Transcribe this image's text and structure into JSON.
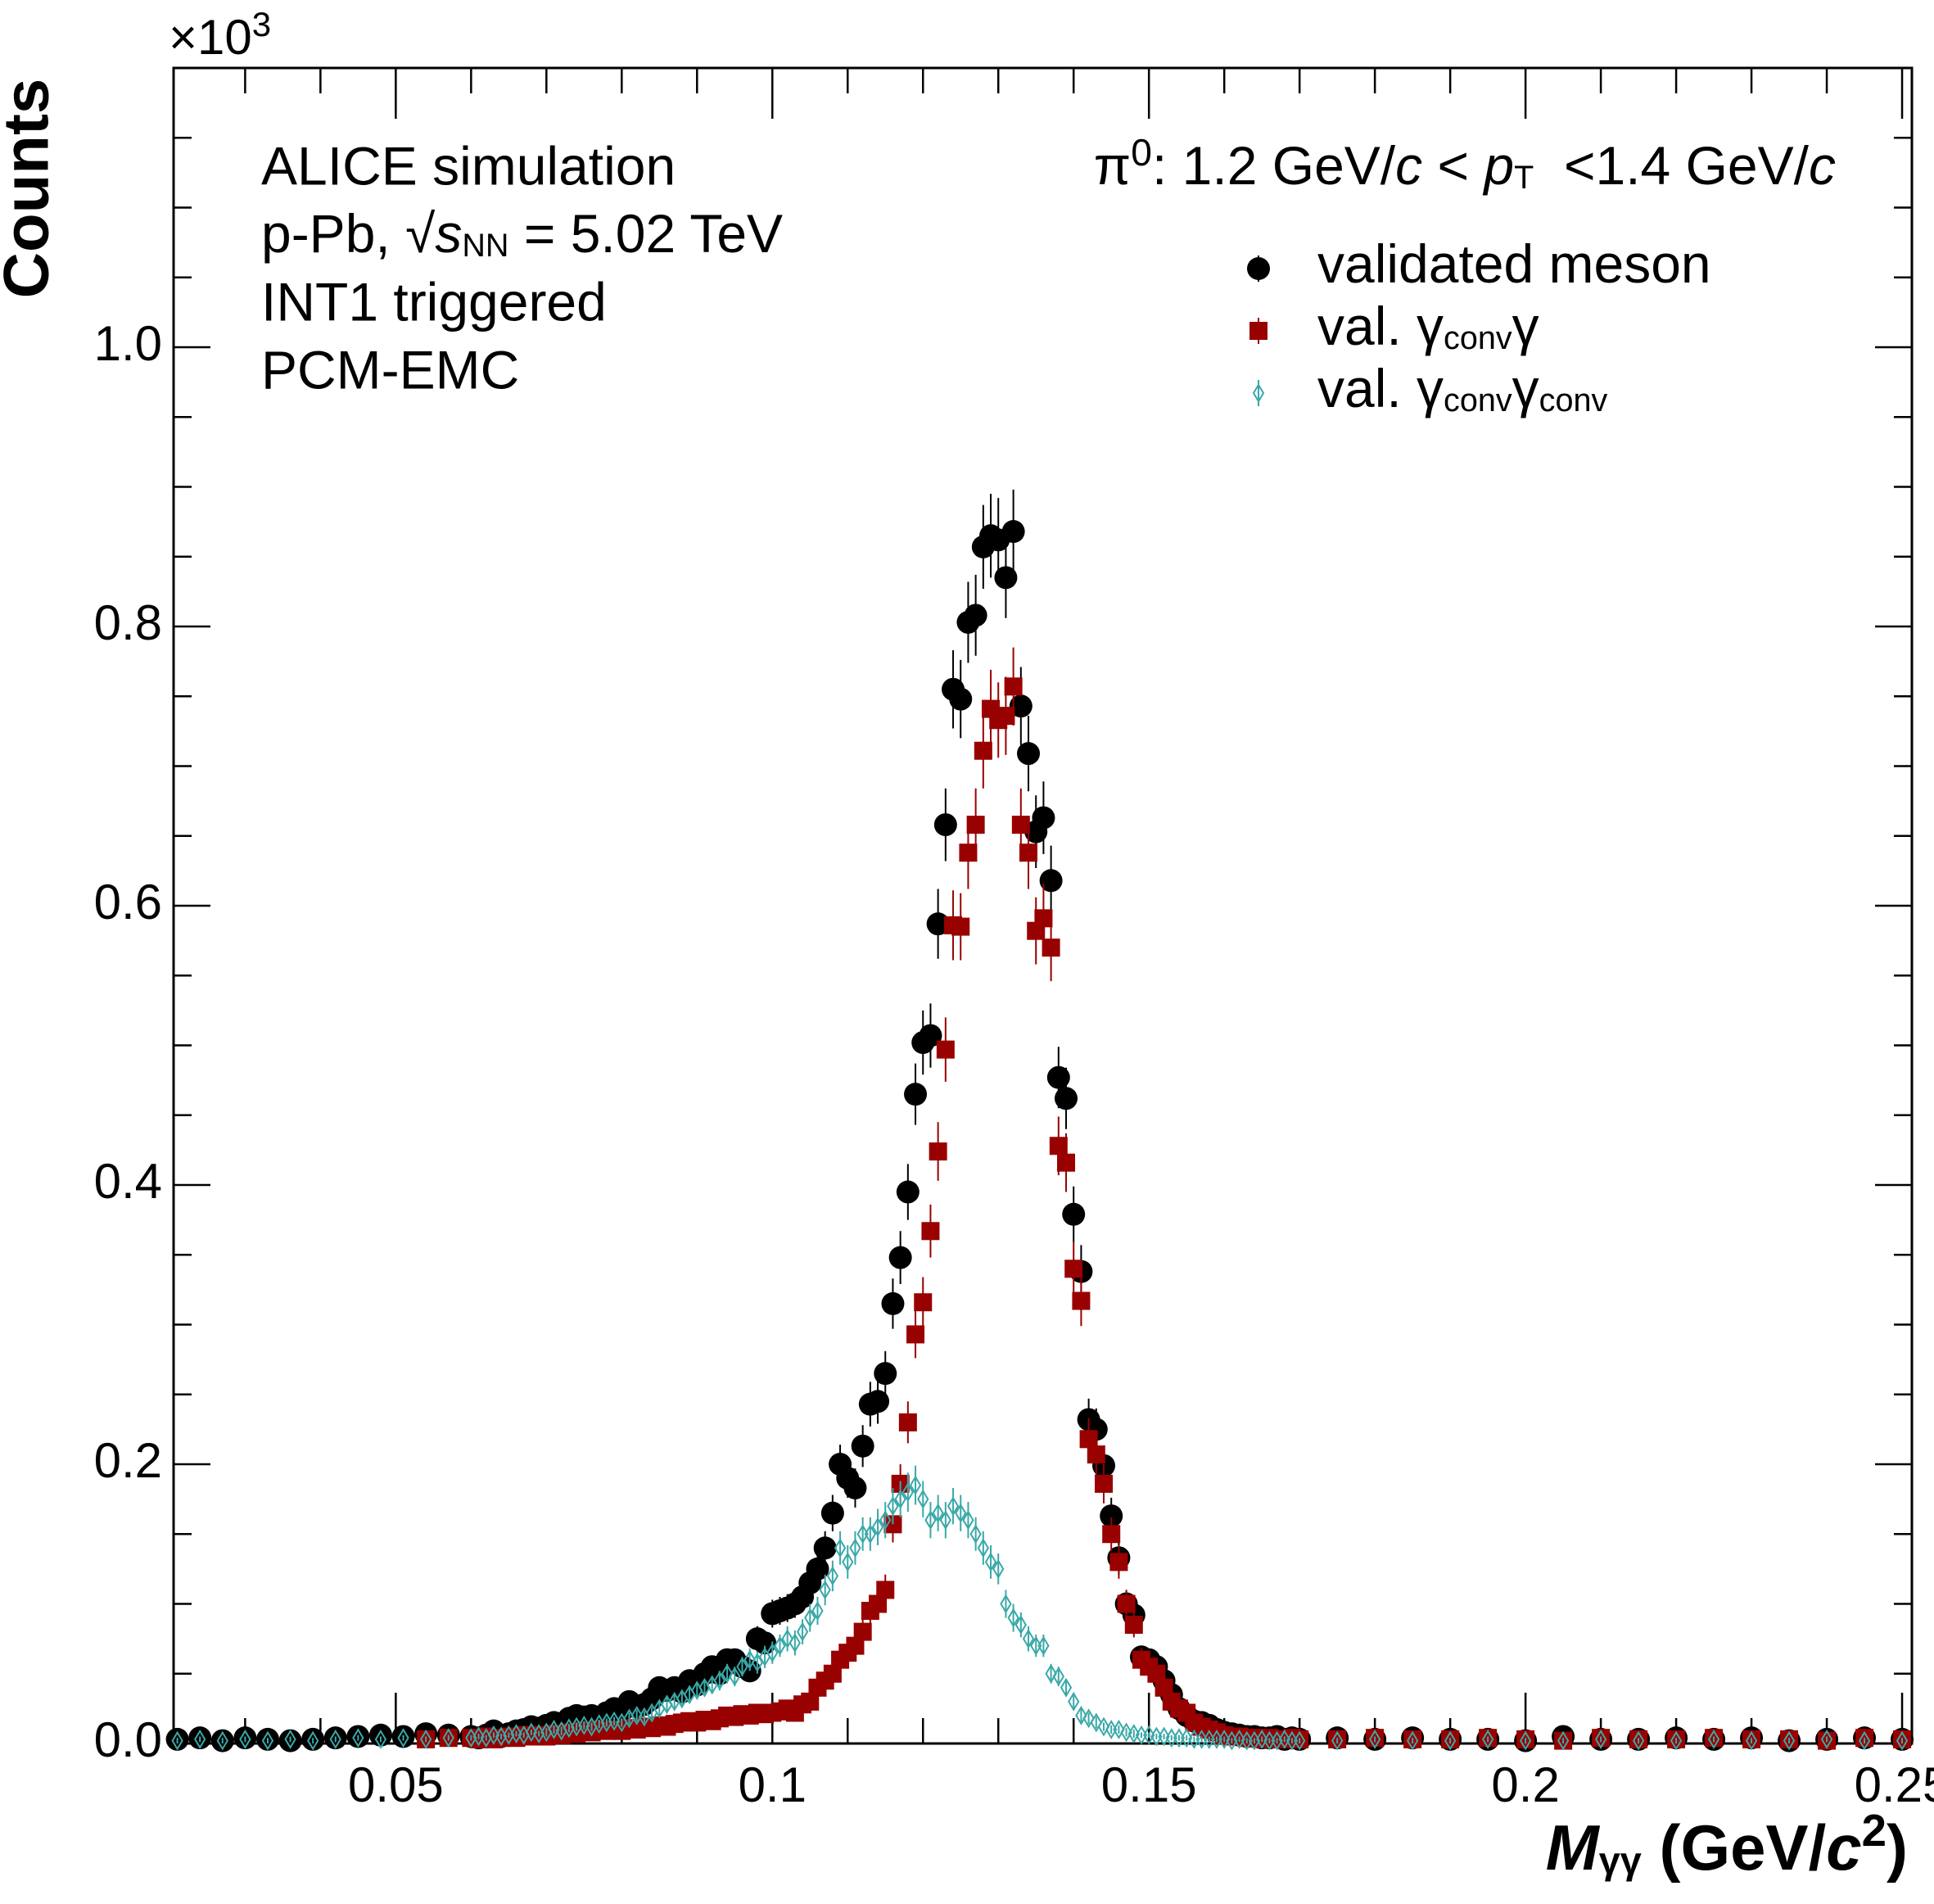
{
  "chart_data": {
    "type": "scatter",
    "multiplier": [
      {
        "text": "×10"
      },
      {
        "text": "3",
        "style": "sup"
      }
    ],
    "ylabel": "Counts",
    "xlabel": [
      {
        "text": "M",
        "style": "bold-italic"
      },
      {
        "text": "γγ",
        "style": "sub"
      },
      {
        "text": " (GeV/"
      },
      {
        "text": "c",
        "style": "bold-italic"
      },
      {
        "text": "2",
        "style": "sup"
      },
      {
        "text": ")"
      }
    ],
    "annotations": [
      "ALICE simulation",
      [
        {
          "text": "p-Pb, "
        },
        {
          "text": "√"
        },
        {
          "text": "s",
          "style": "italic"
        },
        {
          "text": "NN",
          "style": "sub"
        },
        {
          "text": " = 5.02 TeV"
        }
      ],
      "INT1 triggered",
      "PCM-EMC"
    ],
    "subtitle": [
      {
        "text": "π"
      },
      {
        "text": "0",
        "style": "sup"
      },
      {
        "text": ": 1.2 GeV/"
      },
      {
        "text": "c",
        "style": "italic"
      },
      {
        "text": " < "
      },
      {
        "text": "p",
        "style": "italic"
      },
      {
        "text": "T",
        "style": "sub"
      },
      {
        "text": "  <1.4 GeV/"
      },
      {
        "text": "c",
        "style": "italic"
      }
    ],
    "xlim": [
      0.0205,
      0.2513
    ],
    "ylim": [
      0,
      1.2
    ],
    "xticks": [
      0.05,
      0.1,
      0.15,
      0.2,
      0.25
    ],
    "xticks_minor": [
      0.03,
      0.04,
      0.06,
      0.07,
      0.08,
      0.09,
      0.11,
      0.12,
      0.13,
      0.14,
      0.16,
      0.17,
      0.18,
      0.19,
      0.21,
      0.22,
      0.23,
      0.24
    ],
    "yticks": [
      {
        "value": 0,
        "label": "0.0"
      },
      0.2,
      0.4,
      0.6,
      0.8,
      {
        "value": 1,
        "label": "1.0"
      }
    ],
    "yticks_minor": [
      0.05,
      0.1,
      0.15,
      0.25,
      0.3,
      0.35,
      0.45,
      0.5,
      0.55,
      0.65,
      0.7,
      0.75,
      0.85,
      0.9,
      0.95,
      1.05,
      1.1,
      1.15
    ],
    "legend": "upper right",
    "x": [
      0.021,
      0.024,
      0.027,
      0.03,
      0.033,
      0.036,
      0.039,
      0.042,
      0.045,
      0.048,
      0.051,
      0.054,
      0.057,
      0.06,
      0.061,
      0.062,
      0.063,
      0.064,
      0.065,
      0.066,
      0.067,
      0.068,
      0.069,
      0.07,
      0.071,
      0.072,
      0.073,
      0.074,
      0.075,
      0.076,
      0.077,
      0.078,
      0.079,
      0.08,
      0.081,
      0.082,
      0.083,
      0.084,
      0.085,
      0.086,
      0.087,
      0.088,
      0.089,
      0.09,
      0.091,
      0.092,
      0.093,
      0.094,
      0.095,
      0.096,
      0.097,
      0.098,
      0.099,
      0.1,
      0.101,
      0.102,
      0.103,
      0.104,
      0.105,
      0.106,
      0.107,
      0.108,
      0.109,
      0.11,
      0.111,
      0.112,
      0.113,
      0.114,
      0.115,
      0.116,
      0.117,
      0.118,
      0.119,
      0.12,
      0.121,
      0.122,
      0.123,
      0.124,
      0.125,
      0.126,
      0.127,
      0.128,
      0.129,
      0.13,
      0.131,
      0.132,
      0.133,
      0.134,
      0.135,
      0.136,
      0.137,
      0.138,
      0.139,
      0.14,
      0.141,
      0.142,
      0.143,
      0.144,
      0.145,
      0.146,
      0.147,
      0.148,
      0.149,
      0.15,
      0.151,
      0.152,
      0.153,
      0.154,
      0.155,
      0.156,
      0.157,
      0.158,
      0.159,
      0.16,
      0.161,
      0.162,
      0.163,
      0.164,
      0.165,
      0.166,
      0.167,
      0.168,
      0.169,
      0.17,
      0.175,
      0.18,
      0.185,
      0.19,
      0.195,
      0.2,
      0.205,
      0.21,
      0.215,
      0.22,
      0.225,
      0.23,
      0.235,
      0.24,
      0.245,
      0.25
    ],
    "series": [
      {
        "name": [
          {
            "text": "validated meson"
          }
        ],
        "color": "#000000",
        "marker": "circle",
        "values": [
          0.003,
          0.004,
          0.002,
          0.004,
          0.003,
          0.002,
          0.003,
          0.004,
          0.005,
          0.006,
          0.005,
          0.007,
          0.006,
          0.005,
          0.004,
          0.006,
          0.009,
          0.005,
          0.007,
          0.009,
          0.01,
          0.012,
          0.011,
          0.013,
          0.015,
          0.012,
          0.018,
          0.02,
          0.019,
          0.02,
          0.018,
          0.022,
          0.025,
          0.023,
          0.03,
          0.026,
          0.028,
          0.032,
          0.04,
          0.038,
          0.04,
          0.037,
          0.045,
          0.042,
          0.05,
          0.055,
          0.05,
          0.06,
          0.06,
          0.055,
          0.052,
          0.075,
          0.072,
          0.093,
          0.095,
          0.097,
          0.1,
          0.105,
          0.115,
          0.125,
          0.14,
          0.165,
          0.2,
          0.19,
          0.183,
          0.213,
          0.243,
          0.245,
          0.265,
          0.315,
          0.348,
          0.395,
          0.465,
          0.502,
          0.507,
          0.587,
          0.658,
          0.755,
          0.748,
          0.803,
          0.808,
          0.857,
          0.865,
          0.862,
          0.835,
          0.868,
          0.743,
          0.709,
          0.653,
          0.663,
          0.618,
          0.477,
          0.462,
          0.379,
          0.338,
          0.232,
          0.225,
          0.199,
          0.163,
          0.133,
          0.1,
          0.092,
          0.062,
          0.06,
          0.055,
          0.045,
          0.035,
          0.025,
          0.02,
          0.016,
          0.015,
          0.013,
          0.01,
          0.008,
          0.007,
          0.006,
          0.005,
          0.005,
          0.004,
          0.004,
          0.005,
          0.003,
          0.004,
          0.003,
          0.004,
          0.003,
          0.004,
          0.003,
          0.003,
          0.002,
          0.005,
          0.003,
          0.003,
          0.004,
          0.003,
          0.004,
          0.002,
          0.003,
          0.004,
          0.003
        ],
        "errors": [
          0.002,
          0.002,
          0.002,
          0.002,
          0.002,
          0.002,
          0.002,
          0.002,
          0.002,
          0.002,
          0.002,
          0.002,
          0.002,
          0.002,
          0.002,
          0.002,
          0.003,
          0.002,
          0.003,
          0.003,
          0.003,
          0.004,
          0.003,
          0.004,
          0.004,
          0.004,
          0.004,
          0.005,
          0.004,
          0.005,
          0.004,
          0.005,
          0.005,
          0.005,
          0.006,
          0.005,
          0.005,
          0.006,
          0.006,
          0.006,
          0.006,
          0.006,
          0.007,
          0.007,
          0.007,
          0.008,
          0.007,
          0.008,
          0.008,
          0.008,
          0.007,
          0.009,
          0.009,
          0.01,
          0.01,
          0.01,
          0.01,
          0.01,
          0.011,
          0.011,
          0.012,
          0.013,
          0.014,
          0.014,
          0.014,
          0.015,
          0.016,
          0.016,
          0.016,
          0.018,
          0.019,
          0.02,
          0.022,
          0.023,
          0.023,
          0.025,
          0.026,
          0.028,
          0.028,
          0.029,
          0.029,
          0.03,
          0.03,
          0.03,
          0.029,
          0.03,
          0.028,
          0.027,
          0.026,
          0.026,
          0.025,
          0.022,
          0.022,
          0.02,
          0.019,
          0.015,
          0.015,
          0.014,
          0.013,
          0.012,
          0.01,
          0.01,
          0.008,
          0.008,
          0.008,
          0.007,
          0.006,
          0.005,
          0.005,
          0.004,
          0.004,
          0.004,
          0.003,
          0.003,
          0.003,
          0.002,
          0.002,
          0.002,
          0.002,
          0.002,
          0.002,
          0.002,
          0.002,
          0.002,
          0.002,
          0.002,
          0.002,
          0.002,
          0.002,
          0.002,
          0.002,
          0.002,
          0.002,
          0.002,
          0.002,
          0.002,
          0.002,
          0.002,
          0.002,
          0.002
        ]
      },
      {
        "name": [
          {
            "text": "val. γ"
          },
          {
            "text": "conv",
            "style": "sub"
          },
          {
            "text": "γ"
          }
        ],
        "color": "#990000",
        "marker": "square",
        "values": [
          null,
          null,
          null,
          null,
          null,
          null,
          null,
          null,
          null,
          null,
          null,
          0.003,
          0.004,
          0.004,
          0.003,
          0.005,
          0.003,
          0.004,
          0.005,
          0.004,
          0.006,
          0.005,
          0.006,
          0.005,
          0.007,
          0.006,
          0.008,
          0.007,
          0.009,
          0.008,
          0.01,
          0.009,
          0.01,
          0.009,
          0.011,
          0.01,
          0.012,
          0.011,
          0.013,
          0.012,
          0.014,
          0.015,
          0.016,
          0.015,
          0.017,
          0.016,
          0.018,
          0.02,
          0.019,
          0.021,
          0.02,
          0.022,
          0.021,
          0.022,
          0.023,
          0.025,
          0.022,
          0.028,
          0.03,
          0.04,
          0.045,
          0.05,
          0.06,
          0.065,
          0.07,
          0.08,
          0.095,
          0.1,
          0.11,
          0.157,
          0.186,
          0.23,
          0.293,
          0.316,
          0.367,
          0.424,
          0.497,
          0.586,
          0.585,
          0.638,
          0.658,
          0.711,
          0.741,
          0.733,
          0.736,
          0.757,
          0.658,
          0.638,
          0.582,
          0.591,
          0.57,
          0.428,
          0.416,
          0.34,
          0.317,
          0.218,
          0.207,
          0.186,
          0.15,
          0.13,
          0.1,
          0.085,
          0.06,
          0.055,
          0.05,
          0.04,
          0.03,
          0.025,
          0.022,
          0.015,
          0.012,
          0.01,
          0.008,
          0.006,
          0.005,
          0.005,
          0.004,
          0.004,
          0.003,
          0.004,
          0.003,
          0.003,
          0.004,
          0.003,
          0.003,
          0.004,
          0.003,
          0.003,
          0.004,
          0.003,
          0.002,
          0.004,
          0.003,
          0.003,
          0.004,
          0.003,
          0.003,
          0.002,
          0.004,
          0.003
        ],
        "errors": [
          null,
          null,
          null,
          null,
          null,
          null,
          null,
          null,
          null,
          null,
          null,
          0.002,
          0.002,
          0.002,
          0.002,
          0.002,
          0.002,
          0.002,
          0.002,
          0.002,
          0.002,
          0.002,
          0.002,
          0.002,
          0.003,
          0.002,
          0.003,
          0.003,
          0.003,
          0.003,
          0.003,
          0.003,
          0.003,
          0.003,
          0.003,
          0.003,
          0.004,
          0.003,
          0.004,
          0.004,
          0.004,
          0.004,
          0.004,
          0.004,
          0.004,
          0.004,
          0.004,
          0.005,
          0.004,
          0.005,
          0.005,
          0.005,
          0.005,
          0.005,
          0.005,
          0.005,
          0.005,
          0.005,
          0.006,
          0.006,
          0.007,
          0.007,
          0.008,
          0.008,
          0.008,
          0.009,
          0.01,
          0.01,
          0.011,
          0.013,
          0.014,
          0.015,
          0.017,
          0.018,
          0.019,
          0.021,
          0.023,
          0.025,
          0.024,
          0.026,
          0.026,
          0.027,
          0.028,
          0.027,
          0.028,
          0.028,
          0.026,
          0.026,
          0.024,
          0.025,
          0.024,
          0.021,
          0.021,
          0.019,
          0.018,
          0.015,
          0.015,
          0.014,
          0.012,
          0.012,
          0.01,
          0.009,
          0.008,
          0.008,
          0.007,
          0.006,
          0.006,
          0.005,
          0.005,
          0.004,
          0.004,
          0.003,
          0.003,
          0.002,
          0.002,
          0.002,
          0.002,
          0.002,
          0.002,
          0.002,
          0.002,
          0.002,
          0.002,
          0.002,
          0.002,
          0.002,
          0.002,
          0.002,
          0.002,
          0.002,
          0.002,
          0.002,
          0.002,
          0.002,
          0.002,
          0.002,
          0.002,
          0.002,
          0.002,
          0.002
        ]
      },
      {
        "name": [
          {
            "text": "val. γ"
          },
          {
            "text": "conv",
            "style": "sub"
          },
          {
            "text": "γ"
          },
          {
            "text": "conv",
            "style": "sub"
          }
        ],
        "color": "#3aa8a8",
        "marker": "diamond-open",
        "values": [
          0.002,
          0.003,
          0.002,
          0.003,
          0.002,
          0.003,
          0.002,
          0.003,
          0.004,
          0.003,
          0.004,
          0.003,
          0.004,
          0.004,
          0.005,
          0.004,
          0.006,
          0.005,
          0.006,
          0.007,
          0.006,
          0.008,
          0.007,
          0.008,
          0.01,
          0.009,
          0.011,
          0.012,
          0.013,
          0.012,
          0.014,
          0.015,
          0.016,
          0.015,
          0.018,
          0.02,
          0.019,
          0.022,
          0.025,
          0.028,
          0.03,
          0.032,
          0.035,
          0.038,
          0.04,
          0.042,
          0.045,
          0.05,
          0.048,
          0.055,
          0.06,
          0.058,
          0.062,
          0.065,
          0.07,
          0.075,
          0.072,
          0.08,
          0.09,
          0.095,
          0.11,
          0.12,
          0.14,
          0.13,
          0.14,
          0.15,
          0.15,
          0.155,
          0.16,
          0.17,
          0.175,
          0.18,
          0.185,
          0.175,
          0.16,
          0.165,
          0.16,
          0.17,
          0.165,
          0.16,
          0.15,
          0.14,
          0.13,
          0.125,
          0.1,
          0.09,
          0.085,
          0.075,
          0.07,
          0.07,
          0.05,
          0.048,
          0.04,
          0.03,
          0.02,
          0.018,
          0.015,
          0.012,
          0.01,
          0.01,
          0.008,
          0.007,
          0.006,
          0.006,
          0.005,
          0.005,
          0.004,
          0.004,
          0.004,
          0.003,
          0.003,
          0.003,
          0.003,
          0.003,
          0.002,
          0.003,
          0.002,
          0.002,
          0.003,
          0.002,
          0.002,
          0.003,
          0.002,
          0.002,
          0.002,
          0.003,
          0.002,
          0.002,
          0.003,
          0.002,
          0.002,
          0.003,
          0.002,
          0.002,
          0.003,
          0.002,
          0.002,
          0.003,
          0.002,
          0.002
        ],
        "errors": [
          0.002,
          0.002,
          0.002,
          0.002,
          0.002,
          0.002,
          0.002,
          0.002,
          0.002,
          0.002,
          0.002,
          0.002,
          0.002,
          0.002,
          0.002,
          0.002,
          0.002,
          0.002,
          0.002,
          0.002,
          0.002,
          0.002,
          0.002,
          0.003,
          0.003,
          0.003,
          0.003,
          0.003,
          0.003,
          0.003,
          0.003,
          0.003,
          0.003,
          0.003,
          0.004,
          0.004,
          0.004,
          0.004,
          0.005,
          0.005,
          0.005,
          0.005,
          0.006,
          0.006,
          0.006,
          0.006,
          0.007,
          0.007,
          0.007,
          0.007,
          0.008,
          0.008,
          0.008,
          0.008,
          0.008,
          0.009,
          0.009,
          0.009,
          0.01,
          0.01,
          0.011,
          0.011,
          0.012,
          0.012,
          0.012,
          0.012,
          0.012,
          0.013,
          0.013,
          0.013,
          0.013,
          0.014,
          0.014,
          0.013,
          0.013,
          0.013,
          0.013,
          0.013,
          0.013,
          0.013,
          0.012,
          0.012,
          0.012,
          0.011,
          0.01,
          0.01,
          0.009,
          0.009,
          0.008,
          0.008,
          0.007,
          0.007,
          0.006,
          0.006,
          0.005,
          0.004,
          0.004,
          0.003,
          0.003,
          0.003,
          0.003,
          0.003,
          0.002,
          0.002,
          0.002,
          0.002,
          0.002,
          0.002,
          0.002,
          0.002,
          0.002,
          0.002,
          0.002,
          0.002,
          0.002,
          0.002,
          0.002,
          0.002,
          0.002,
          0.002,
          0.002,
          0.002,
          0.002,
          0.002,
          0.002,
          0.002,
          0.002,
          0.002,
          0.002,
          0.002,
          0.002,
          0.002,
          0.002,
          0.002,
          0.002,
          0.002,
          0.002,
          0.002,
          0.002,
          0.002
        ]
      }
    ]
  }
}
